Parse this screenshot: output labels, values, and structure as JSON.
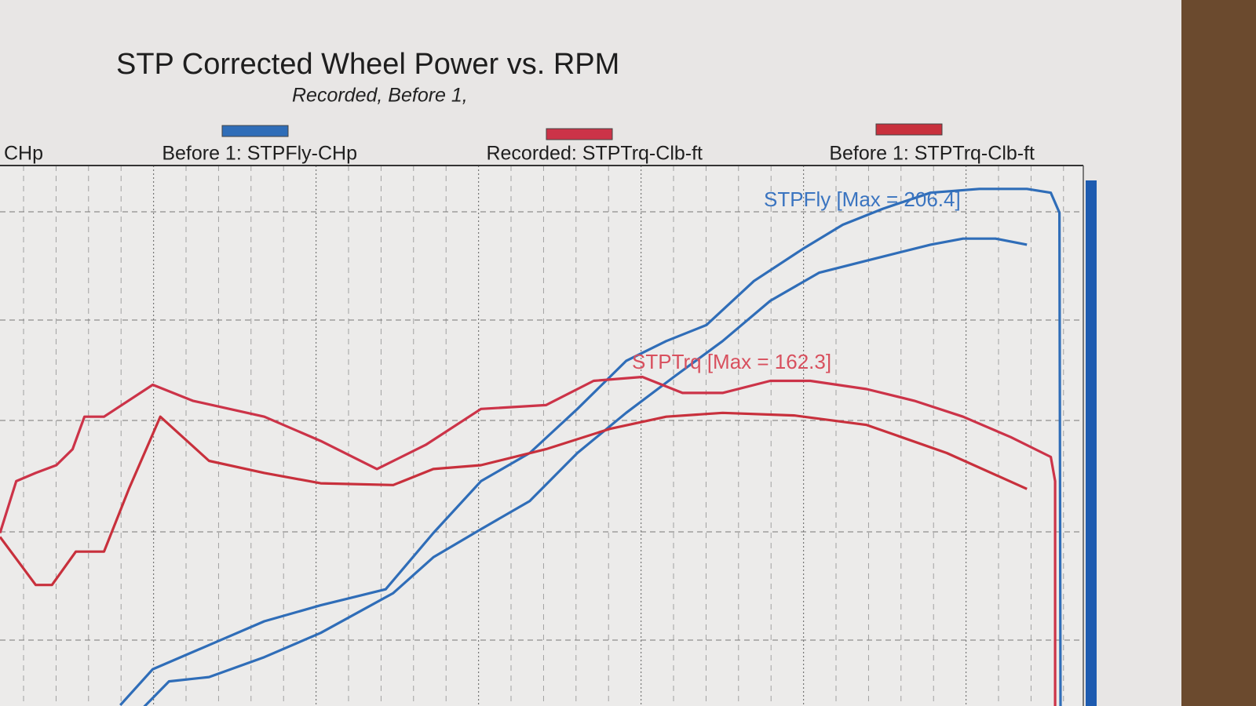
{
  "chart_data": {
    "type": "line",
    "title": "STP Corrected Wheel Power vs. RPM",
    "subtitle": "Recorded, Before 1,",
    "xlim": [
      0,
      100
    ],
    "ylim": [
      85,
      210
    ],
    "grid": true,
    "annotations": [
      {
        "text": "STPFly [Max = 206.4]",
        "color": "#3a74c0"
      },
      {
        "text": "STPTrq [Max = 162.3]",
        "color": "#d8505e"
      }
    ],
    "series": [
      {
        "name": "CHp",
        "color": "#2f6db8",
        "x": [
          11.1,
          14.1,
          19.3,
          24.4,
          29.6,
          35.6,
          40.0,
          44.4,
          48.9,
          53.3,
          57.8,
          61.5,
          65.2,
          69.6,
          74.1,
          77.8,
          81.5,
          85.9,
          90.4,
          94.8,
          97.0,
          97.8,
          97.9
        ],
        "values": [
          85.2,
          93.5,
          99.1,
          104.6,
          108.3,
          112.0,
          125.0,
          137.0,
          143.5,
          153.7,
          164.8,
          169.4,
          173.1,
          183.3,
          190.7,
          196.3,
          200.0,
          203.7,
          204.6,
          204.6,
          203.7,
          199.1,
          84.8
        ]
      },
      {
        "name": "Before 1: STPFly-CHp",
        "color": "#2f6db8",
        "x": [
          13.3,
          15.6,
          19.3,
          24.4,
          29.6,
          36.3,
          40.0,
          44.4,
          48.9,
          53.3,
          57.8,
          62.2,
          66.7,
          71.1,
          75.6,
          80.0,
          85.9,
          88.9,
          91.9,
          94.8
        ],
        "values": [
          84.8,
          90.7,
          91.7,
          96.3,
          101.9,
          111.1,
          119.4,
          125.9,
          132.4,
          143.5,
          152.8,
          161.1,
          169.4,
          178.7,
          185.2,
          188.0,
          191.7,
          193.1,
          193.1,
          191.7
        ]
      },
      {
        "name": "Recorded: STPTrq-Clb-ft",
        "color": "#cc3348",
        "x": [
          0,
          1.5,
          3.3,
          5.2,
          6.7,
          7.8,
          9.6,
          14.1,
          17.8,
          24.4,
          29.6,
          34.8,
          39.3,
          44.4,
          50.4,
          54.8,
          59.3,
          63.0,
          66.7,
          71.1,
          74.8,
          80.0,
          84.4,
          88.9,
          93.3,
          97.0,
          97.4,
          97.4
        ],
        "values": [
          125.0,
          137.0,
          138.9,
          140.7,
          144.4,
          151.9,
          151.9,
          159.3,
          155.6,
          151.9,
          146.3,
          139.8,
          145.4,
          153.7,
          154.6,
          160.2,
          161.1,
          157.4,
          157.4,
          160.2,
          160.2,
          158.3,
          155.6,
          151.9,
          147.2,
          142.6,
          137.0,
          84.8
        ]
      },
      {
        "name": "Before 1: STPTrq-Clb-ft",
        "color": "#c8303c",
        "x": [
          0,
          3.3,
          4.8,
          7.0,
          9.6,
          11.9,
          14.8,
          19.3,
          24.4,
          29.6,
          36.3,
          40.0,
          44.4,
          50.4,
          56.3,
          61.5,
          66.7,
          73.3,
          80.0,
          87.4,
          94.8
        ],
        "values": [
          124.1,
          113.0,
          113.0,
          120.7,
          120.7,
          135.2,
          151.9,
          141.7,
          138.9,
          136.5,
          136.1,
          139.8,
          140.7,
          144.4,
          149.1,
          151.9,
          152.8,
          152.2,
          150.0,
          143.5,
          135.2
        ]
      }
    ]
  }
}
